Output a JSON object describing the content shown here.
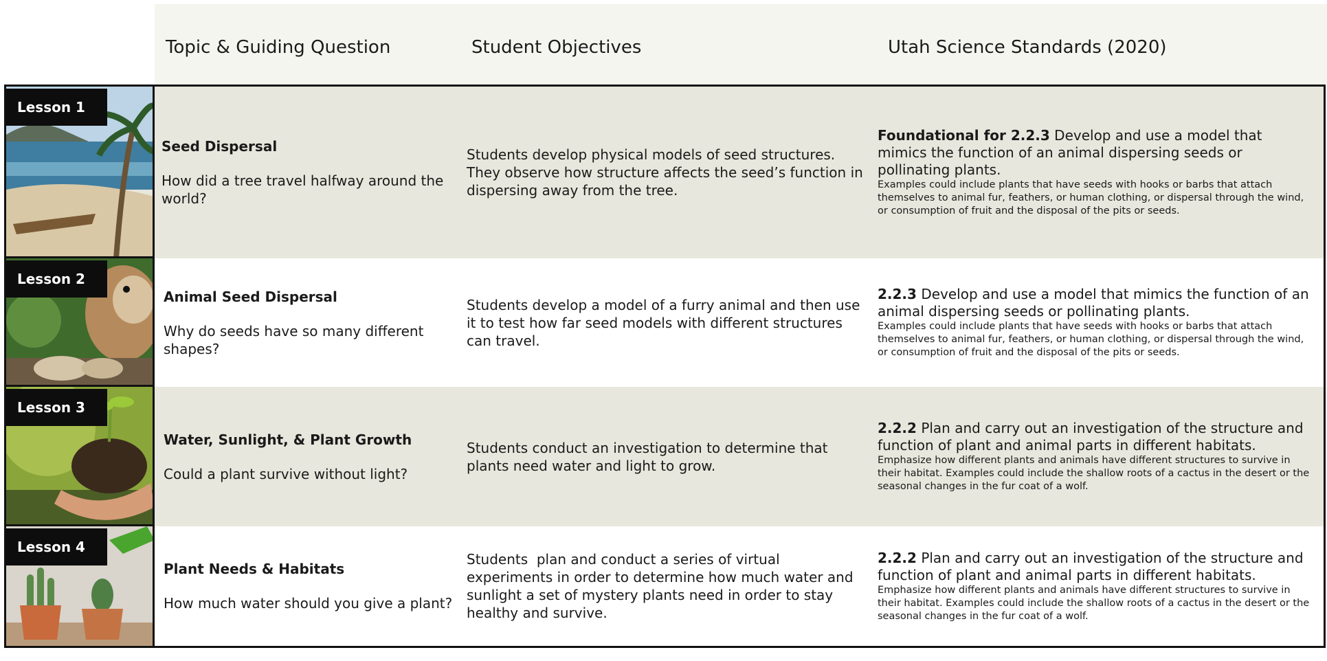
{
  "header": {
    "columns": [
      "Topic & Guiding Question",
      "Student Objectives",
      "Utah Science Standards (2020)"
    ]
  },
  "rows": [
    {
      "lesson": "Lesson 1",
      "topic": "Seed Dispersal",
      "question": "How did a tree travel halfway around the world?",
      "objectives": "Students develop physical models of seed structures. They observe how structure affects the seed’s function in dispersing away from the tree.",
      "standard_code": "Foundational for 2.2.3",
      "standard_text": "Develop and use a model that mimics the function of an animal dispersing seeds or pollinating plants.",
      "standard_note": "Examples could include plants that have seeds with hooks or barbs that attach themselves to animal fur, feathers, or human clothing, or dispersal through the wind, or consumption of fruit and the disposal of the pits or seeds."
    },
    {
      "lesson": "Lesson 2",
      "topic": "Animal Seed Dispersal",
      "question": "Why do seeds have so many different shapes?",
      "objectives": "Students develop a model of a furry animal and then use it to test how far seed models with different structures can travel.",
      "standard_code": "2.2.3",
      "standard_text": "Develop and use a model that mimics the function of an animal dispersing seeds or pollinating plants.",
      "standard_note": "Examples could include plants that have seeds with hooks or barbs that attach themselves to animal fur, feathers, or human clothing, or dispersal through the wind, or consumption of fruit and the disposal of the pits or seeds."
    },
    {
      "lesson": "Lesson 3",
      "topic": "Water, Sunlight, & Plant Growth",
      "question": "Could a plant survive without light?",
      "objectives": "Students conduct an investigation to determine that plants need water and light to grow.",
      "standard_code": "2.2.2",
      "standard_text": "Plan and carry out an investigation of the structure and function of plant and animal parts in different habitats.",
      "standard_note": "Emphasize how different plants and animals have different structures to survive in their habitat. Examples could include the shallow roots of a cactus in the desert or the seasonal changes in the fur coat of a wolf."
    },
    {
      "lesson": "Lesson 4",
      "topic": "Plant Needs & Habitats",
      "question": "How much water should you give a plant?",
      "objectives": "Students  plan and conduct a series of virtual experiments in order to determine how much water and sunlight a set of mystery plants need in order to stay healthy and survive.",
      "standard_code": "2.2.2",
      "standard_text": "Plan and carry out an investigation of the structure and function of plant and animal parts in different habitats.",
      "standard_note": "Emphasize how different plants and animals have different structures to survive in their habitat. Examples could include the shallow roots of a cactus in the desert or the seasonal changes in the fur coat of a wolf."
    }
  ]
}
